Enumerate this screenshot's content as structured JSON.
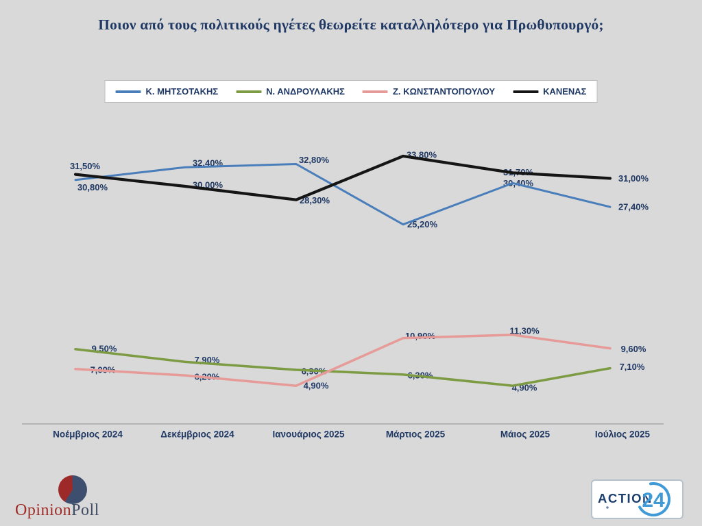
{
  "title": "Ποιον από τους πολιτικούς ηγέτες θεωρείτε καταλληλότερο για Πρωθυπουργό;",
  "colors": {
    "background": "#d9d9d9",
    "text_navy": "#1f3864",
    "axis_gray": "#a7a7a7",
    "legend_border": "#bdbdbd"
  },
  "chart_data": {
    "type": "line",
    "title": "Ποιον από τους πολιτικούς ηγέτες θεωρείτε καταλληλότερο για Πρωθυπουργό;",
    "categories": [
      "Νοέμβριος 2024",
      "Δεκέμβριος  2024",
      "Ιανουάριος 2025",
      "Μάρτιος 2025",
      "Μάιος 2025",
      "Ιούλιος 2025"
    ],
    "series": [
      {
        "name": "Κ. ΜΗΤΣΟΤΑΚΗΣ",
        "color": "#4a7ebb",
        "values": [
          30.8,
          32.4,
          32.8,
          25.2,
          30.4,
          27.4
        ],
        "labels": [
          "30,80%",
          "32,40%",
          "32,80%",
          "25,20%",
          "30,40%",
          "27,40%"
        ]
      },
      {
        "name": "Ν. ΑΝΔΡΟΥΛΑΚΗΣ",
        "color": "#7d9b43",
        "values": [
          9.5,
          7.9,
          6.9,
          6.3,
          4.9,
          7.1
        ],
        "labels": [
          "9,50%",
          "7,90%",
          "6,90%",
          "6,30%",
          "4,90%",
          "7,10%"
        ]
      },
      {
        "name": "Ζ. ΚΩΝΣΤΑΝΤΟΠΟΥΛΟΥ",
        "color": "#e69b98",
        "values": [
          7.0,
          6.2,
          4.9,
          10.9,
          11.3,
          9.6
        ],
        "labels": [
          "7,00%",
          "6,20%",
          "4,90%",
          "10,90%",
          "11,30%",
          "9,60%"
        ]
      },
      {
        "name": "ΚΑΝΕΝΑΣ",
        "color": "#151515",
        "values": [
          31.5,
          30.0,
          28.3,
          33.8,
          31.7,
          31.0
        ],
        "labels": [
          "31,50%",
          "30,00%",
          "28,30%",
          "33,80%",
          "31,70%",
          "31,00%"
        ]
      }
    ],
    "xlabel": "",
    "ylabel": "",
    "ylim": [
      0,
      38
    ],
    "grid": false,
    "legend_position": "top",
    "data_labels": true,
    "decimal_style": "comma"
  },
  "footer": {
    "opinionpoll": {
      "text_opinion": "Opinion",
      "text_poll": "Poll"
    },
    "action24": {
      "text_action": "ACTION",
      "text_24": "24"
    }
  }
}
